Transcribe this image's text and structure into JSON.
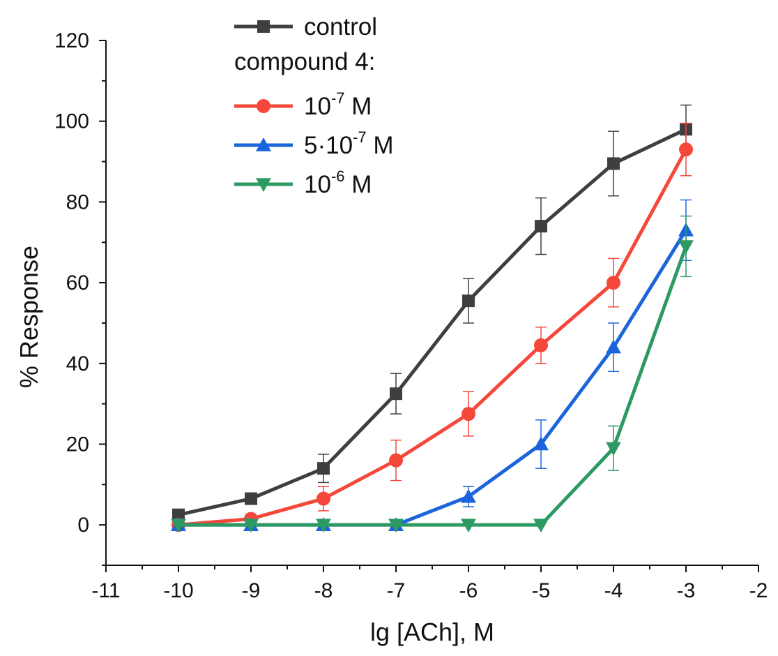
{
  "chart_data": {
    "type": "line",
    "title": "",
    "xlabel": "lg [ACh], M",
    "ylabel": "% Response",
    "xlim": [
      -11,
      -2
    ],
    "ylim": [
      -10,
      120
    ],
    "x_ticks": [
      -11,
      -10,
      -9,
      -8,
      -7,
      -6,
      -5,
      -4,
      -3,
      -2
    ],
    "x_tick_labels": [
      "-11",
      "-10",
      "-9",
      "-8",
      "-7",
      "-6",
      "-5",
      "-4",
      "-3",
      "-2"
    ],
    "y_ticks": [
      0,
      20,
      40,
      60,
      80,
      100,
      120
    ],
    "y_tick_labels": [
      "0",
      "20",
      "40",
      "60",
      "80",
      "100",
      "120"
    ],
    "grid": false,
    "legend_position": "top-left",
    "legend_heading": "compound 4:",
    "series": [
      {
        "name": "control",
        "label_parts": [
          "control"
        ],
        "color": "#3f3f3f",
        "marker": "square",
        "x": [
          -10,
          -9,
          -8,
          -7,
          -6,
          -5,
          -4,
          -3
        ],
        "y": [
          2.5,
          6.5,
          14,
          32.5,
          55.5,
          74,
          89.5,
          98
        ],
        "err": [
          0,
          0,
          3.5,
          5,
          5.5,
          7,
          8,
          6
        ]
      },
      {
        "name": "10-7 M",
        "label_parts": [
          "10",
          "-7",
          " M"
        ],
        "color": "#f5473a",
        "marker": "circle",
        "x": [
          -10,
          -9,
          -8,
          -7,
          -6,
          -5,
          -4,
          -3
        ],
        "y": [
          0,
          1.5,
          6.5,
          16,
          27.5,
          44.5,
          60,
          93
        ],
        "err": [
          0,
          0,
          3,
          5,
          5.5,
          4.5,
          6,
          6.5
        ]
      },
      {
        "name": "5·10-7 M",
        "label_parts": [
          "5·10",
          "-7",
          " M"
        ],
        "color": "#1b64dc",
        "marker": "triangle-up",
        "x": [
          -10,
          -9,
          -8,
          -7,
          -6,
          -5,
          -4,
          -3
        ],
        "y": [
          0,
          0,
          0,
          0,
          7,
          20,
          44,
          73
        ],
        "err": [
          0,
          0,
          0,
          0,
          2.5,
          6,
          6,
          7.5
        ]
      },
      {
        "name": "10-6 M",
        "label_parts": [
          "10",
          "-6",
          " M"
        ],
        "color": "#2e9a63",
        "marker": "triangle-down",
        "x": [
          -10,
          -9,
          -8,
          -7,
          -6,
          -5,
          -4,
          -3
        ],
        "y": [
          0,
          0,
          0,
          0,
          0,
          0,
          19,
          69
        ],
        "err": [
          0,
          0,
          0,
          0,
          0,
          0,
          5.5,
          7.5
        ]
      }
    ]
  }
}
